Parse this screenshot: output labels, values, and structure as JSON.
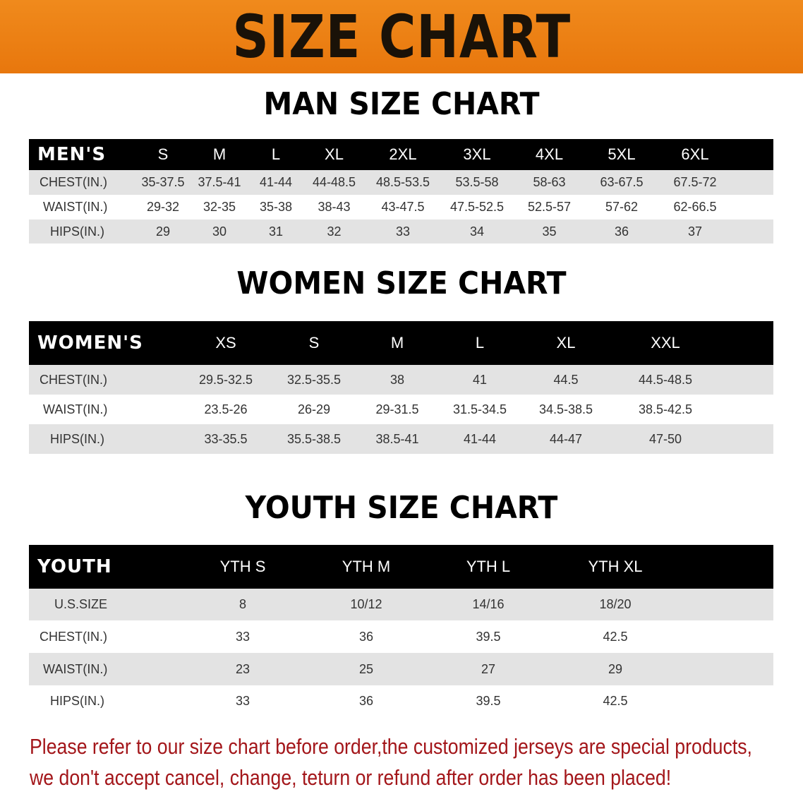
{
  "banner_title": "SIZE CHART",
  "men": {
    "title": "MAN SIZE CHART",
    "header": [
      "MEN'S",
      "S",
      "M",
      "L",
      "XL",
      "2XL",
      "3XL",
      "4XL",
      "5XL",
      "6XL"
    ],
    "rows": [
      [
        "CHEST(IN.)",
        "35-37.5",
        "37.5-41",
        "41-44",
        "44-48.5",
        "48.5-53.5",
        "53.5-58",
        "58-63",
        "63-67.5",
        "67.5-72"
      ],
      [
        "WAIST(IN.)",
        "29-32",
        "32-35",
        "35-38",
        "38-43",
        "43-47.5",
        "47.5-52.5",
        "52.5-57",
        "57-62",
        "62-66.5"
      ],
      [
        "HIPS(IN.)",
        "29",
        "30",
        "31",
        "32",
        "33",
        "34",
        "35",
        "36",
        "37"
      ]
    ]
  },
  "women": {
    "title": "WOMEN SIZE CHART",
    "header": [
      "WOMEN'S",
      "XS",
      "S",
      "M",
      "L",
      "XL",
      "XXL"
    ],
    "rows": [
      [
        "CHEST(IN.)",
        "29.5-32.5",
        "32.5-35.5",
        "38",
        "41",
        "44.5",
        "44.5-48.5"
      ],
      [
        "WAIST(IN.)",
        "23.5-26",
        "26-29",
        "29-31.5",
        "31.5-34.5",
        "34.5-38.5",
        "38.5-42.5"
      ],
      [
        "HIPS(IN.)",
        "33-35.5",
        "35.5-38.5",
        "38.5-41",
        "41-44",
        "44-47",
        "47-50"
      ]
    ]
  },
  "youth": {
    "title": "YOUTH SIZE CHART",
    "header": [
      "YOUTH",
      "YTH S",
      "YTH M",
      "YTH L",
      "YTH XL"
    ],
    "rows": [
      [
        "U.S.SIZE",
        "8",
        "10/12",
        "14/16",
        "18/20"
      ],
      [
        "CHEST(IN.)",
        "33",
        "36",
        "39.5",
        "42.5"
      ],
      [
        "WAIST(IN.)",
        "23",
        "25",
        "27",
        "29"
      ],
      [
        "HIPS(IN.)",
        "33",
        "36",
        "39.5",
        "42.5"
      ]
    ]
  },
  "notice": {
    "line1": "Please refer to our size chart before order,the customized jerseys are special products,",
    "line2": "we don't accept cancel, change, teturn or refund after order has been placed!"
  },
  "colors": {
    "banner": "#ec7f14",
    "header_row": "#000000",
    "shaded_row": "#e3e3e3",
    "notice_text": "#a3161a"
  }
}
